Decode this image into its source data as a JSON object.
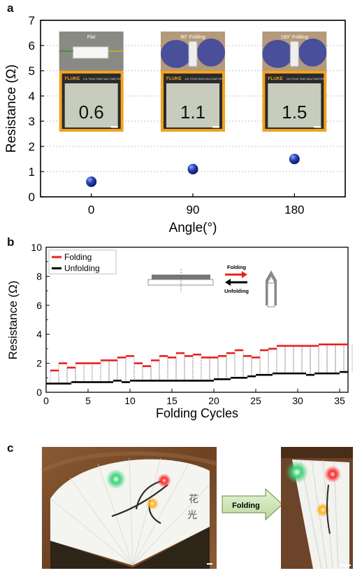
{
  "panel_labels": {
    "a": "a",
    "b": "b",
    "c": "c"
  },
  "chart_data": [
    {
      "type": "scatter",
      "panel": "a",
      "xlabel": "Angle(°)",
      "ylabel": "Resistance (Ω)",
      "categories": [
        "0",
        "90",
        "180"
      ],
      "values": [
        0.6,
        1.1,
        1.5
      ],
      "yticks": [
        "0",
        "1",
        "2",
        "3",
        "4",
        "5",
        "6",
        "7"
      ],
      "ylim": [
        0,
        7
      ],
      "grid": true,
      "marker_color": "#1f3a9e",
      "insets": [
        {
          "caption": "Flat",
          "reading": "0.6"
        },
        {
          "caption": "90° Folding",
          "reading": "1.1"
        },
        {
          "caption": "180° Folding",
          "reading": "1.5"
        }
      ],
      "meter_brand": "FLUKE",
      "meter_model": "115 TRUE RMS MULTIMETER"
    },
    {
      "type": "line",
      "panel": "b",
      "xlabel": "Folding Cycles",
      "ylabel": "Resistance (Ω)",
      "xlim": [
        0,
        36
      ],
      "ylim": [
        0,
        10
      ],
      "xticks": [
        "0",
        "5",
        "10",
        "15",
        "20",
        "25",
        "30",
        "35"
      ],
      "yticks": [
        "0",
        "2",
        "4",
        "6",
        "8",
        "10"
      ],
      "x": [
        1,
        2,
        3,
        4,
        5,
        6,
        7,
        8,
        9,
        10,
        11,
        12,
        13,
        14,
        15,
        16,
        17,
        18,
        19,
        20,
        21,
        22,
        23,
        24,
        25,
        26,
        27,
        28,
        29,
        30,
        31,
        32,
        33,
        34,
        35,
        36
      ],
      "series": [
        {
          "name": "Folding",
          "color": "#e8201c",
          "values": [
            1.5,
            2.0,
            1.7,
            2.0,
            2.0,
            2.0,
            2.2,
            2.2,
            2.4,
            2.5,
            2.0,
            1.8,
            2.2,
            2.5,
            2.4,
            2.7,
            2.5,
            2.6,
            2.4,
            2.4,
            2.5,
            2.7,
            2.9,
            2.5,
            2.4,
            2.9,
            3.0,
            3.2,
            3.2,
            3.2,
            3.2,
            3.2,
            3.3,
            3.3,
            3.3,
            3.3
          ]
        },
        {
          "name": "Unfolding",
          "color": "#000000",
          "values": [
            0.6,
            0.6,
            0.6,
            0.7,
            0.7,
            0.7,
            0.7,
            0.7,
            0.8,
            0.7,
            0.8,
            0.8,
            0.8,
            0.8,
            0.8,
            0.8,
            0.8,
            0.8,
            0.8,
            0.8,
            0.9,
            0.9,
            1.0,
            1.0,
            1.1,
            1.2,
            1.2,
            1.3,
            1.3,
            1.3,
            1.3,
            1.2,
            1.3,
            1.3,
            1.3,
            1.4
          ]
        }
      ],
      "legend_position": "top-left",
      "diagram_labels": {
        "folding": "Folding",
        "unfolding": "Unfolding"
      }
    }
  ],
  "panel_c": {
    "arrow_label": "Folding"
  }
}
